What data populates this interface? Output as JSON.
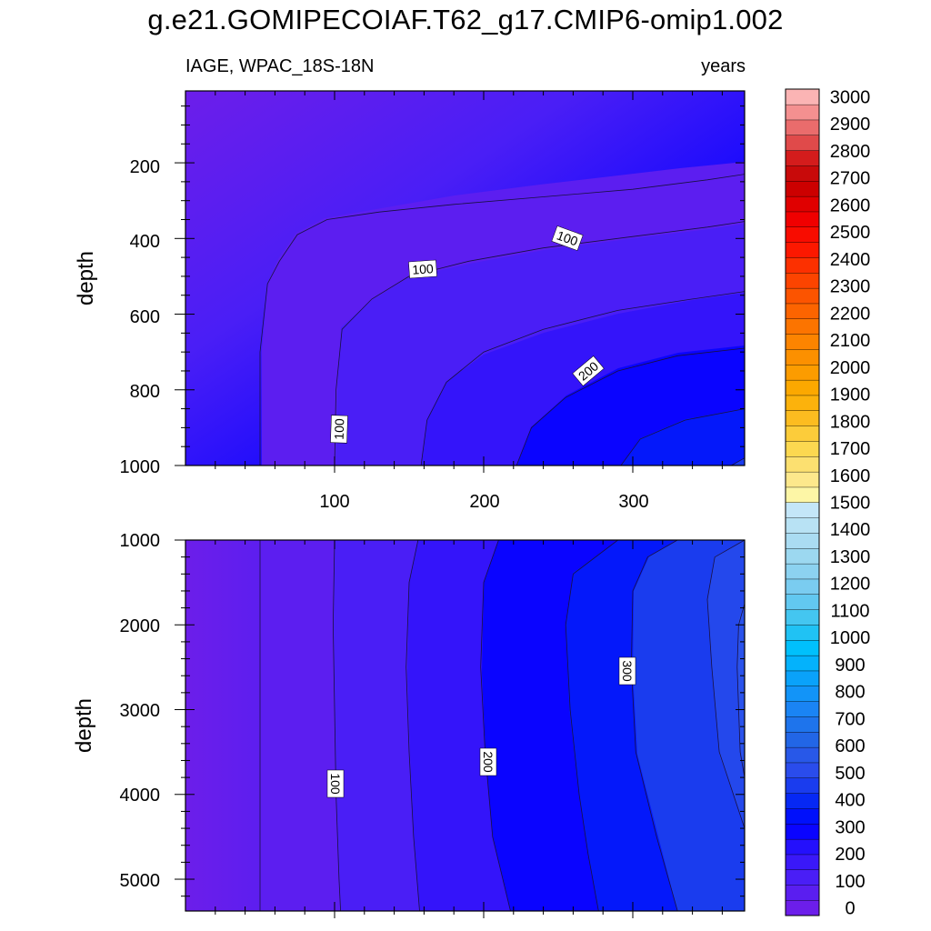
{
  "header": {
    "title": "g.e21.GOMIPECOIAF.T62_g17.CMIP6-omip1.002",
    "left_subtitle": "IAGE, WPAC_18S-18N",
    "right_subtitle": "years"
  },
  "chart_data": [
    {
      "type": "contour",
      "panel": "upper",
      "variable": "IAGE",
      "region": "WPAC_18S-18N",
      "units": "years",
      "xlabel": "",
      "ylabel": "depth",
      "xlim": [
        0,
        375
      ],
      "ylim": [
        1000,
        10
      ],
      "xticks": [
        "100",
        "200",
        "300"
      ],
      "yticks": [
        "200",
        "400",
        "600",
        "800",
        "1000"
      ],
      "contour_labels": [
        "100",
        "100",
        "100",
        "200"
      ],
      "contours": [
        {
          "level": 50,
          "path": [
            [
              50,
              1000
            ],
            [
              50,
              700
            ],
            [
              55,
              520
            ],
            [
              63,
              460
            ],
            [
              75,
              390
            ],
            [
              95,
              350
            ],
            [
              130,
              330
            ],
            [
              180,
              310
            ],
            [
              240,
              290
            ],
            [
              300,
              270
            ],
            [
              350,
              245
            ],
            [
              375,
              230
            ]
          ]
        },
        {
          "level": 100,
          "path": [
            [
              100,
              1000
            ],
            [
              101,
              800
            ],
            [
              105,
              640
            ],
            [
              125,
              560
            ],
            [
              150,
              500
            ],
            [
              190,
              460
            ],
            [
              240,
              425
            ],
            [
              300,
              395
            ],
            [
              350,
              370
            ],
            [
              375,
              355
            ]
          ]
        },
        {
          "level": 150,
          "path": [
            [
              158,
              1000
            ],
            [
              162,
              880
            ],
            [
              175,
              780
            ],
            [
              200,
              700
            ],
            [
              240,
              640
            ],
            [
              290,
              590
            ],
            [
              340,
              560
            ],
            [
              375,
              540
            ]
          ]
        },
        {
          "level": 200,
          "path": [
            [
              222,
              1000
            ],
            [
              232,
              900
            ],
            [
              255,
              820
            ],
            [
              290,
              750
            ],
            [
              330,
              710
            ],
            [
              375,
              690
            ]
          ]
        },
        {
          "level": 250,
          "path": [
            [
              292,
              1000
            ],
            [
              305,
              930
            ],
            [
              335,
              880
            ],
            [
              375,
              850
            ]
          ]
        },
        {
          "level": 300,
          "path": [
            [
              366,
              1000
            ],
            [
              375,
              980
            ]
          ]
        }
      ]
    },
    {
      "type": "contour",
      "panel": "lower",
      "variable": "IAGE",
      "units": "years",
      "xlabel": "",
      "ylabel": "depth",
      "xlim": [
        0,
        375
      ],
      "ylim": [
        5375,
        1000
      ],
      "yticks": [
        "1000",
        "2000",
        "3000",
        "4000",
        "5000"
      ],
      "contour_labels": [
        "100",
        "200",
        "300"
      ],
      "contours": [
        {
          "level": 50,
          "path": [
            [
              50,
              1000
            ],
            [
              50,
              5375
            ]
          ]
        },
        {
          "level": 100,
          "path": [
            [
              100,
              1000
            ],
            [
              99,
              2000
            ],
            [
              100,
              3000
            ],
            [
              101,
              4000
            ],
            [
              103,
              5000
            ],
            [
              104,
              5375
            ]
          ]
        },
        {
          "level": 150,
          "path": [
            [
              156,
              1000
            ],
            [
              150,
              1500
            ],
            [
              148,
              2500
            ],
            [
              150,
              3500
            ],
            [
              153,
              4500
            ],
            [
              157,
              5375
            ]
          ]
        },
        {
          "level": 200,
          "path": [
            [
              210,
              1000
            ],
            [
              200,
              1500
            ],
            [
              198,
              2500
            ],
            [
              201,
              3500
            ],
            [
              206,
              4500
            ],
            [
              218,
              5375
            ]
          ]
        },
        {
          "level": 250,
          "path": [
            [
              290,
              1000
            ],
            [
              260,
              1400
            ],
            [
              255,
              2000
            ],
            [
              258,
              3000
            ],
            [
              264,
              4000
            ],
            [
              270,
              4700
            ],
            [
              277,
              5375
            ]
          ]
        },
        {
          "level": 300,
          "path": [
            [
              330,
              1000
            ],
            [
              310,
              1200
            ],
            [
              300,
              1600
            ],
            [
              299,
              2500
            ],
            [
              302,
              3500
            ],
            [
              316,
              4500
            ],
            [
              330,
              5375
            ]
          ]
        },
        {
          "level": 350,
          "path": [
            [
              375,
              1000
            ],
            [
              355,
              1200
            ],
            [
              350,
              1700
            ],
            [
              353,
              2500
            ],
            [
              358,
              3500
            ],
            [
              375,
              4400
            ]
          ]
        },
        {
          "level": 400,
          "path": [
            [
              375,
              1750
            ],
            [
              371,
              2000
            ],
            [
              370,
              2500
            ],
            [
              372,
              3500
            ],
            [
              375,
              3800
            ]
          ]
        }
      ]
    }
  ],
  "colorbar": {
    "labels": [
      "0",
      "100",
      "200",
      "300",
      "400",
      "500",
      "600",
      "700",
      "800",
      "900",
      "1000",
      "1100",
      "1200",
      "1300",
      "1400",
      "1500",
      "1600",
      "1700",
      "1800",
      "1900",
      "2000",
      "2100",
      "2200",
      "2300",
      "2400",
      "2500",
      "2600",
      "2700",
      "2800",
      "2900",
      "3000"
    ],
    "bin_colors": [
      "#6c1eea",
      "#5a1ef0",
      "#4a1ef6",
      "#3a18f8",
      "#2410fc",
      "#0a04ff",
      "#0010fb",
      "#0628f4",
      "#1a3cee",
      "#2a4cec",
      "#2858e8",
      "#2266e6",
      "#1e74ec",
      "#1a84f4",
      "#1294f8",
      "#0aa2fa",
      "#04b2fc",
      "#00c0fc",
      "#20c2f4",
      "#44c6f0",
      "#62c8f0",
      "#7accf0",
      "#8cd2f0",
      "#9cd8f0",
      "#aadcf2",
      "#b8e2f4",
      "#c4e6f8",
      "#fdf6a6",
      "#fde88c",
      "#fce070",
      "#fcd850",
      "#fccc3a",
      "#fcbc20",
      "#fcb20c",
      "#fca800",
      "#fc9c00",
      "#fc9000",
      "#fc8400",
      "#fc7400",
      "#fc6400",
      "#fc5400",
      "#fc4400",
      "#fc3000",
      "#fc1800",
      "#f80c00",
      "#f00000",
      "#e00000",
      "#cc0000",
      "#c80a0a",
      "#d41c1c",
      "#e04a4a",
      "#ea6c6c",
      "#f49090",
      "#fbb4b4"
    ]
  }
}
